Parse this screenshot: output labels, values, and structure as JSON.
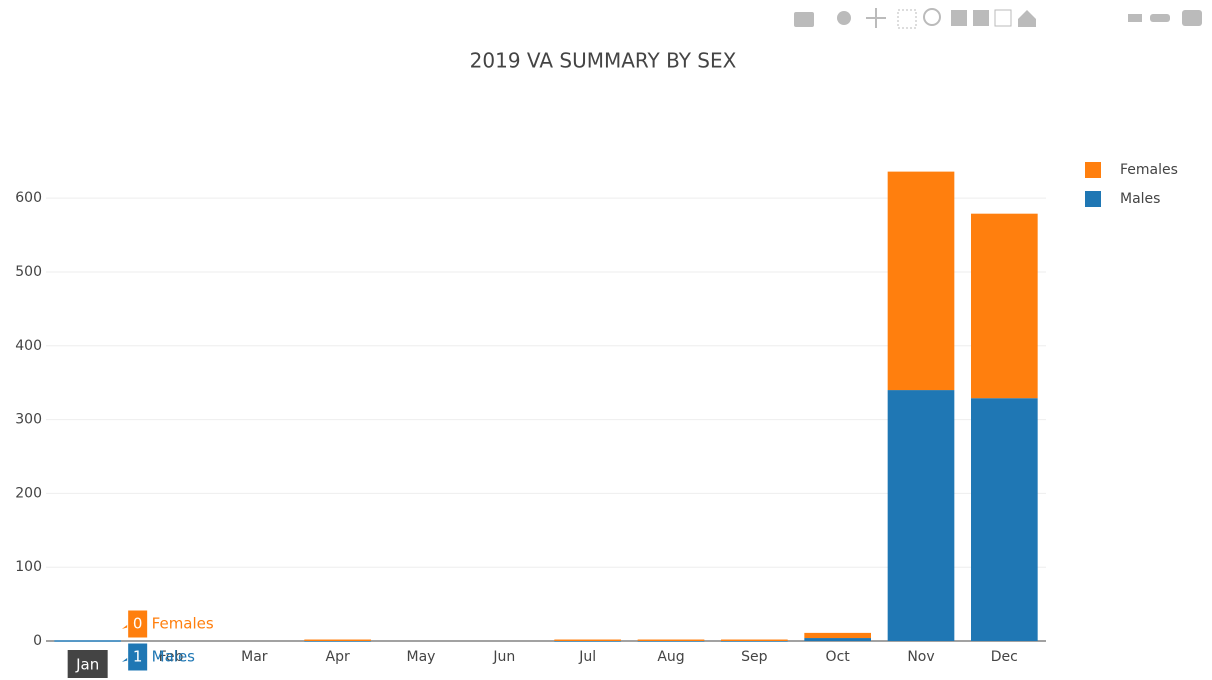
{
  "chart_data": {
    "type": "bar",
    "stacked": true,
    "title": "2019 VA SUMMARY BY SEX",
    "categories": [
      "Jan",
      "Feb",
      "Mar",
      "Apr",
      "May",
      "Jun",
      "Jul",
      "Aug",
      "Sep",
      "Oct",
      "Nov",
      "Dec"
    ],
    "series": [
      {
        "name": "Males",
        "color": "#1f77b4",
        "values": [
          1,
          0,
          0,
          1,
          0,
          0,
          1,
          1,
          1,
          4,
          340,
          329
        ]
      },
      {
        "name": "Females",
        "color": "#ff7f0e",
        "values": [
          0,
          0,
          0,
          1,
          0,
          0,
          1,
          1,
          1,
          7,
          296,
          250
        ]
      }
    ],
    "ylim": [
      0,
      668
    ],
    "yticks": [
      0,
      100,
      200,
      300,
      400,
      500,
      600
    ],
    "grid": true,
    "legend": "top-right",
    "hover": {
      "category": 0
    }
  }
}
